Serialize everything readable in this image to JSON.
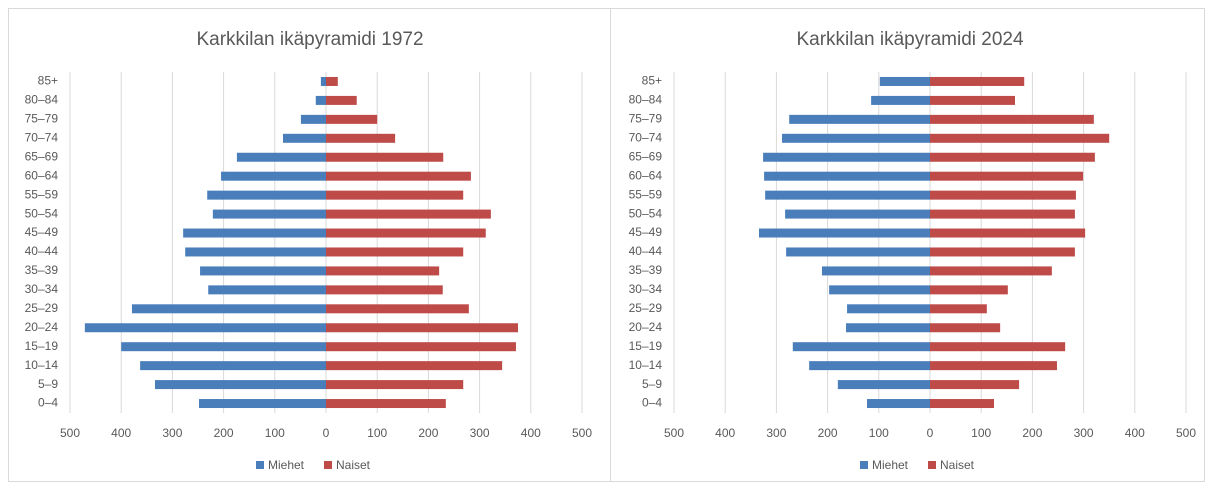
{
  "chart_data": [
    {
      "type": "bar",
      "orientation": "horizontal",
      "stacked": true,
      "title": "Karkkilan ikäpyramidi 1972",
      "categories": [
        "0–4",
        "5–9",
        "10–14",
        "15–19",
        "20–24",
        "25–29",
        "30–34",
        "35–39",
        "40–44",
        "45–49",
        "50–54",
        "55–59",
        "60–64",
        "65–69",
        "70–74",
        "75–79",
        "80–84",
        "85+"
      ],
      "series": [
        {
          "name": "Miehet",
          "color": "#4a7ebb",
          "values": [
            -248,
            -334,
            -363,
            -400,
            -471,
            -379,
            -230,
            -246,
            -275,
            -279,
            -221,
            -232,
            -205,
            -174,
            -84,
            -49,
            -20,
            -10
          ]
        },
        {
          "name": "Naiset",
          "color": "#be4b48",
          "values": [
            234,
            268,
            344,
            371,
            375,
            279,
            228,
            221,
            268,
            312,
            322,
            268,
            283,
            229,
            135,
            100,
            60,
            23
          ]
        }
      ],
      "xlim": [
        -500,
        500
      ],
      "xticks": [
        {
          "value": -500,
          "label": "500"
        },
        {
          "value": -400,
          "label": "400"
        },
        {
          "value": -300,
          "label": "300"
        },
        {
          "value": -200,
          "label": "200"
        },
        {
          "value": -100,
          "label": "100"
        },
        0,
        100,
        200,
        300,
        400,
        500
      ],
      "grid": true,
      "legend": "bottom"
    },
    {
      "type": "bar",
      "orientation": "horizontal",
      "stacked": true,
      "title": "Karkkilan ikäpyramidi 2024",
      "categories": [
        "0–4",
        "5–9",
        "10–14",
        "15–19",
        "20–24",
        "25–29",
        "30–34",
        "35–39",
        "40–44",
        "45–49",
        "50–54",
        "55–59",
        "60–64",
        "65–69",
        "70–74",
        "75–79",
        "80–84",
        "85+"
      ],
      "series": [
        {
          "name": "Miehet",
          "color": "#4a7ebb",
          "values": [
            -123,
            -180,
            -236,
            -268,
            -164,
            -162,
            -197,
            -211,
            -281,
            -334,
            -283,
            -322,
            -324,
            -326,
            -289,
            -275,
            -115,
            -98
          ]
        },
        {
          "name": "Naiset",
          "color": "#be4b48",
          "values": [
            125,
            174,
            248,
            264,
            137,
            111,
            152,
            238,
            283,
            303,
            283,
            285,
            299,
            322,
            350,
            320,
            166,
            184
          ]
        }
      ],
      "xlim": [
        -500,
        500
      ],
      "xticks": [
        {
          "value": -500,
          "label": "500"
        },
        {
          "value": -400,
          "label": "400"
        },
        {
          "value": -300,
          "label": "300"
        },
        {
          "value": -200,
          "label": "200"
        },
        {
          "value": -100,
          "label": "100"
        },
        0,
        100,
        200,
        300,
        400,
        500
      ],
      "grid": true,
      "legend": "bottom"
    }
  ]
}
